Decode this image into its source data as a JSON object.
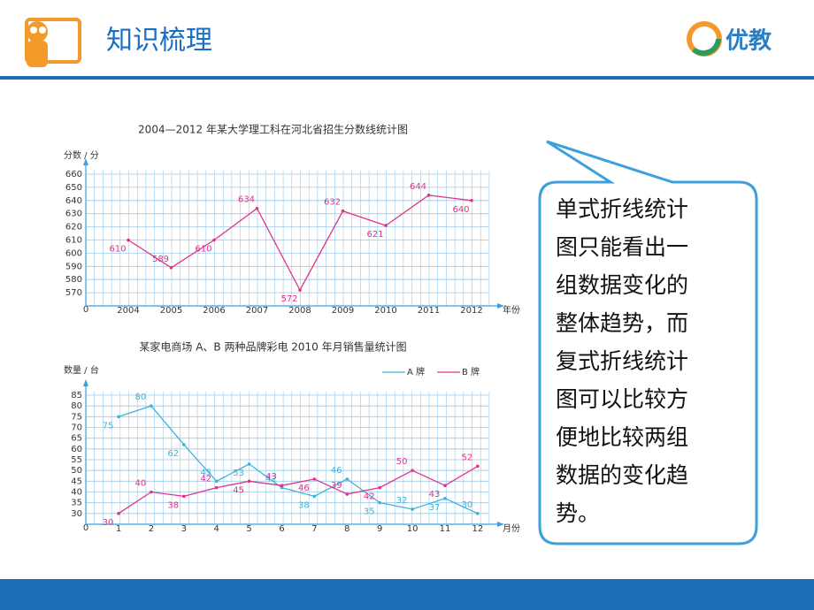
{
  "header": {
    "title": "知识梳理",
    "logo": "优教"
  },
  "bubble": {
    "lines": [
      "单式折线统计",
      "图只能看出一",
      "组数据变化的",
      "整体趋势，而",
      "复式折线统计",
      "图可以比较方",
      "便地比较两组",
      "数据的变化趋",
      "势。"
    ]
  },
  "chart_data": [
    {
      "type": "line",
      "title": "2004—2012 年某大学理工科在河北省招生分数线统计图",
      "y_label": "分数 / 分",
      "x_label": "年份",
      "origin_label": "0",
      "categories": [
        "2004",
        "2005",
        "2006",
        "2007",
        "2008",
        "2009",
        "2010",
        "2011",
        "2012"
      ],
      "values": [
        610,
        589,
        610,
        634,
        572,
        632,
        621,
        644,
        640
      ],
      "color": "#e0338a",
      "ylim": [
        560,
        660
      ],
      "yticks": [
        570,
        580,
        590,
        600,
        610,
        620,
        630,
        640,
        650,
        660
      ],
      "grid": true
    },
    {
      "type": "line",
      "title": "某家电商场 A、B 两种品牌彩电 2010 年月销售量统计图",
      "y_label": "数量 / 台",
      "x_label": "月份",
      "origin_label": "0",
      "categories": [
        "1",
        "2",
        "3",
        "4",
        "5",
        "6",
        "7",
        "8",
        "9",
        "10",
        "11",
        "12"
      ],
      "series": [
        {
          "name": "A 牌",
          "color": "#3cb4d8",
          "values": [
            75,
            80,
            62,
            45,
            53,
            42,
            38,
            46,
            35,
            32,
            37,
            30
          ]
        },
        {
          "name": "B 牌",
          "color": "#e0338a",
          "values": [
            30,
            40,
            38,
            42,
            45,
            43,
            46,
            39,
            42,
            50,
            43,
            52
          ]
        }
      ],
      "ylim": [
        25,
        85
      ],
      "yticks": [
        30,
        35,
        40,
        45,
        50,
        55,
        60,
        65,
        70,
        75,
        80,
        85
      ],
      "grid": true,
      "legend": "top-right"
    }
  ]
}
